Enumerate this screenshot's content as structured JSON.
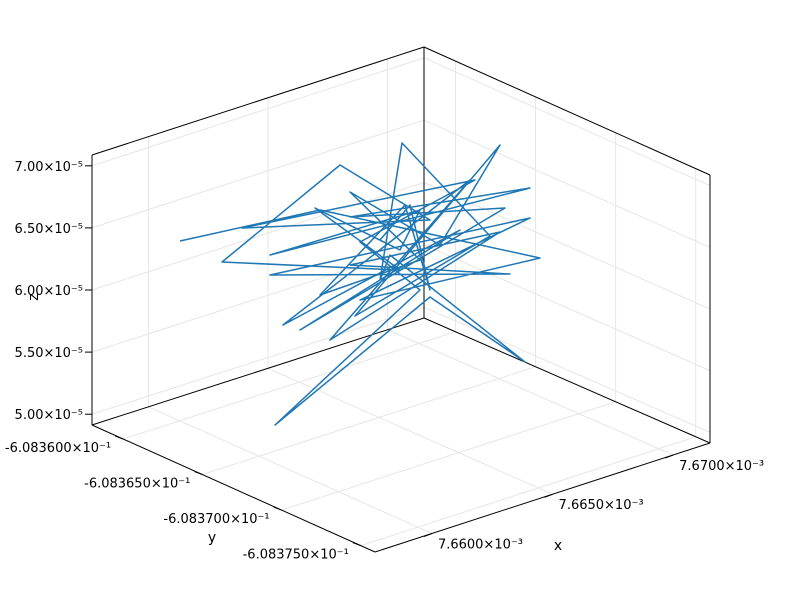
{
  "chart_data": {
    "type": "line",
    "projection": "3d",
    "grid": true,
    "xlabel": "x",
    "ylabel": "y",
    "zlabel": "z",
    "series_color": "#1f77b4",
    "x_ticks": [
      {
        "label": "7.6600×10⁻³",
        "value": 0.00766
      },
      {
        "label": "7.6650×10⁻³",
        "value": 0.007665
      },
      {
        "label": "7.6700×10⁻³",
        "value": 0.00767
      }
    ],
    "y_ticks": [
      {
        "label": "-6.083600×10⁻¹",
        "value": -0.60836
      },
      {
        "label": "-6.083650×10⁻¹",
        "value": -0.608365
      },
      {
        "label": "-6.083700×10⁻¹",
        "value": -0.60837
      },
      {
        "label": "-6.083750×10⁻¹",
        "value": -0.608375
      }
    ],
    "z_ticks": [
      {
        "label": "5.00×10⁻⁵",
        "value": 5e-05
      },
      {
        "label": "5.50×10⁻⁵",
        "value": 5.5e-05
      },
      {
        "label": "6.00×10⁻⁵",
        "value": 6e-05
      },
      {
        "label": "6.50×10⁻⁵",
        "value": 6.5e-05
      },
      {
        "label": "7.00×10⁻⁵",
        "value": 7e-05
      }
    ],
    "line_vertices_projected": [
      [
        180,
        241
      ],
      [
        320,
        210
      ],
      [
        540,
        258
      ],
      [
        360,
        300
      ],
      [
        530,
        218
      ],
      [
        270,
        275
      ],
      [
        510,
        274
      ],
      [
        350,
        265
      ],
      [
        500,
        232
      ],
      [
        330,
        340
      ],
      [
        470,
        180
      ],
      [
        283,
        325
      ],
      [
        460,
        230
      ],
      [
        300,
        330
      ],
      [
        505,
        208
      ],
      [
        350,
        217
      ],
      [
        530,
        188
      ],
      [
        270,
        255
      ],
      [
        420,
        210
      ],
      [
        400,
        250
      ],
      [
        315,
        208
      ],
      [
        400,
        270
      ],
      [
        222,
        262
      ],
      [
        340,
        165
      ],
      [
        430,
        220
      ],
      [
        242,
        228
      ],
      [
        475,
        180
      ],
      [
        360,
        242
      ],
      [
        420,
        290
      ],
      [
        275,
        425
      ],
      [
        430,
        297
      ],
      [
        525,
        362
      ],
      [
        390,
        255
      ],
      [
        380,
        280
      ],
      [
        402,
        143
      ],
      [
        490,
        236
      ],
      [
        355,
        316
      ],
      [
        500,
        145
      ],
      [
        440,
        245
      ],
      [
        350,
        192
      ],
      [
        420,
        260
      ],
      [
        320,
        295
      ],
      [
        405,
        205
      ],
      [
        430,
        290
      ],
      [
        410,
        205
      ],
      [
        380,
        240
      ]
    ]
  }
}
